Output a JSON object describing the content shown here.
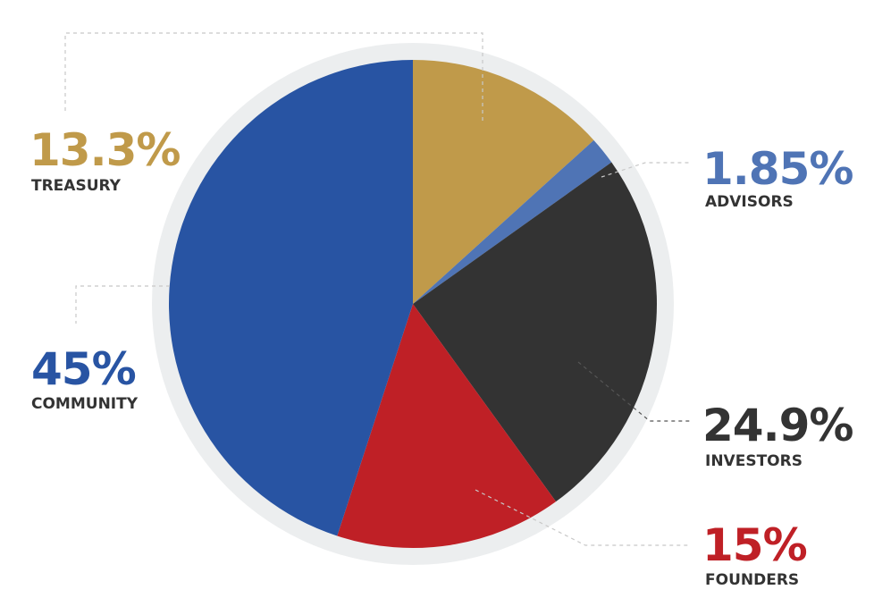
{
  "chart_data": {
    "type": "pie",
    "title": "",
    "start_angle_deg": 0,
    "direction": "clockwise",
    "slices": [
      {
        "name": "TREASURY",
        "value": 13.3,
        "label": "13.3%",
        "color": "#C09A4A",
        "leader_color": "#C8C8C8"
      },
      {
        "name": "ADVISORS",
        "value": 1.85,
        "label": "1.85%",
        "color": "#4F74B5",
        "leader_color": "#C8C8C8"
      },
      {
        "name": "INVESTORS",
        "value": 24.9,
        "label": "24.9%",
        "color": "#333333",
        "leader_color": "#555555"
      },
      {
        "name": "FOUNDERS",
        "value": 15,
        "label": "15%",
        "color": "#BF2026",
        "leader_color": "#C8C8C8"
      },
      {
        "name": "COMMUNITY",
        "value": 45,
        "label": "45%",
        "color": "#2854A3",
        "leader_color": "#C8C8C8"
      }
    ],
    "ring_color": "#ECEEEF",
    "label_text_color": "#333333"
  }
}
